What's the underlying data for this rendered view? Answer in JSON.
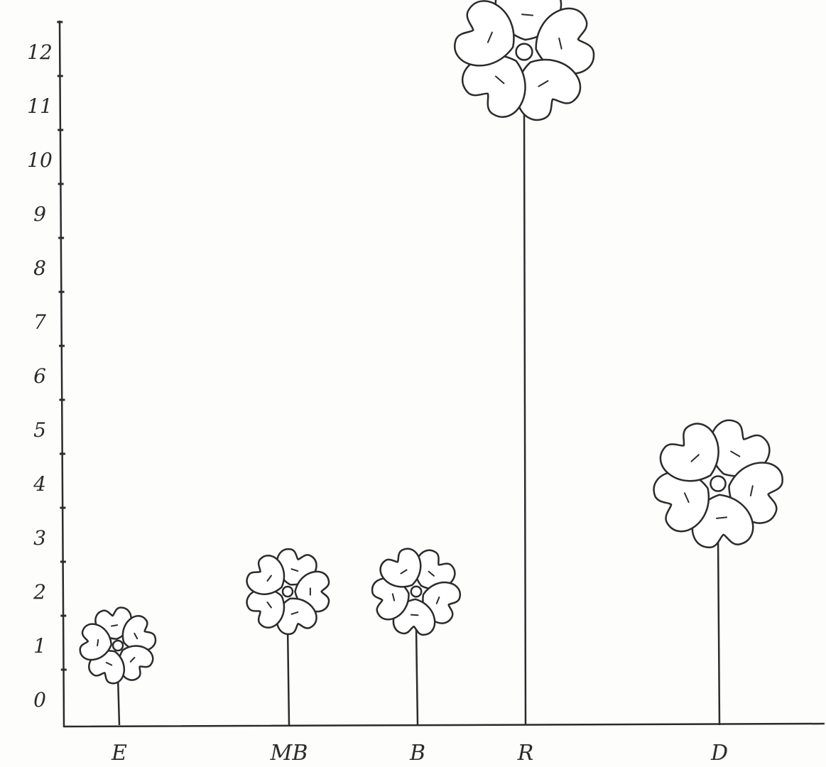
{
  "chart_data": {
    "type": "bar",
    "style": "hand-drawn flower pictograph",
    "categories": [
      "E",
      "MB",
      "B",
      "R",
      "D"
    ],
    "values": [
      1,
      2,
      2,
      12,
      4
    ],
    "ylim": [
      0,
      12
    ],
    "yticks": [
      "0",
      "1",
      "2",
      "3",
      "4",
      "5",
      "6",
      "7",
      "8",
      "9",
      "10",
      "11",
      "12"
    ],
    "title": "",
    "xlabel": "",
    "ylabel": "",
    "grid": false,
    "colors": {
      "ink": "#2b2b2b",
      "petal_fill": "#ffffff",
      "paper": "#fdfdfc"
    }
  }
}
